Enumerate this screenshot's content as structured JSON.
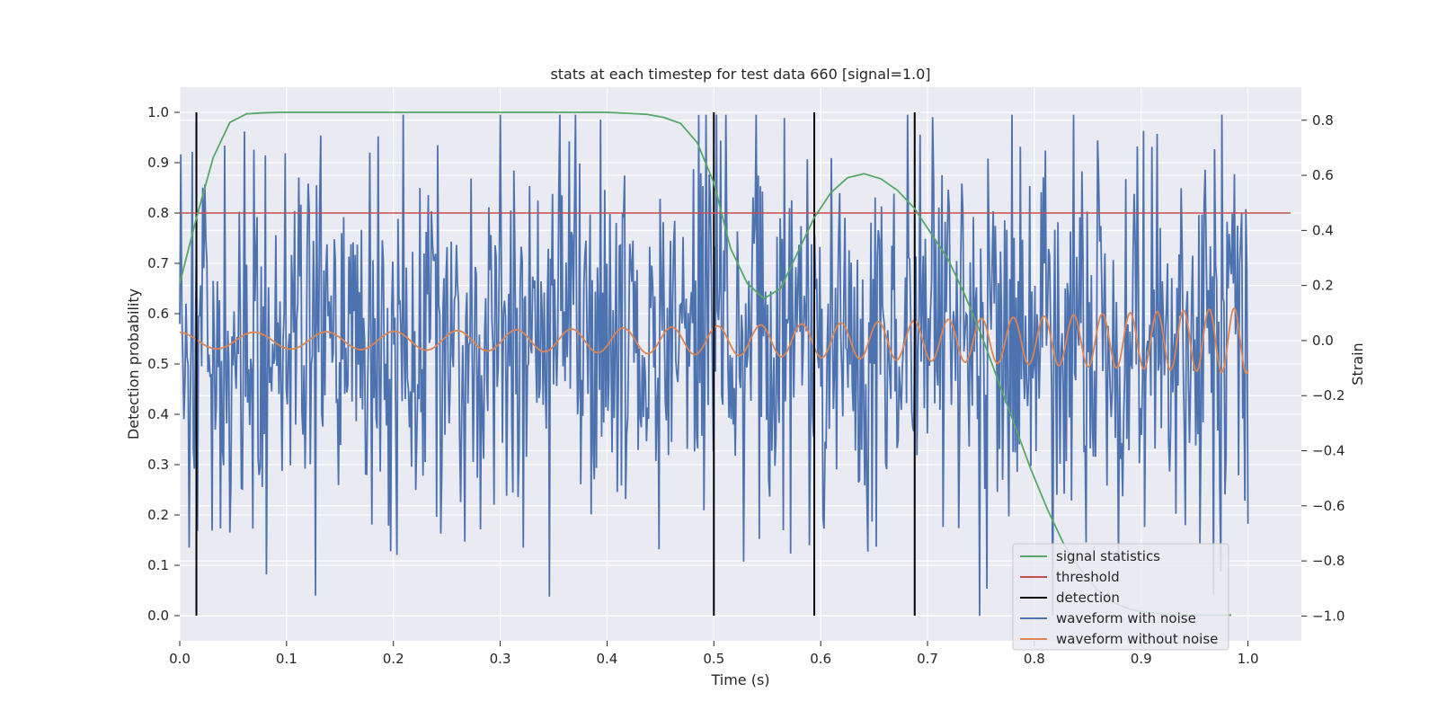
{
  "chart_data": {
    "type": "line",
    "title": "stats at each timestep for test data 660 [signal=1.0]",
    "xlabel": "Time (s)",
    "ylabel": "Detection probability",
    "y2label": "Strain",
    "xlim": [
      0.0,
      1.05
    ],
    "ylim": [
      -0.05,
      1.05
    ],
    "y2lim": [
      -1.09,
      0.92
    ],
    "xticks": [
      "0.0",
      "0.1",
      "0.2",
      "0.3",
      "0.4",
      "0.5",
      "0.6",
      "0.7",
      "0.8",
      "0.9",
      "1.0"
    ],
    "yticks": [
      "0.0",
      "0.1",
      "0.2",
      "0.3",
      "0.4",
      "0.5",
      "0.6",
      "0.7",
      "0.8",
      "0.9",
      "1.0"
    ],
    "y2ticks": [
      "−1.0",
      "−0.8",
      "−0.6",
      "−0.4",
      "−0.2",
      "0.0",
      "0.2",
      "0.4",
      "0.6",
      "0.8"
    ],
    "grid": true,
    "legend_position": "lower-right",
    "colors": {
      "background": "#eaeaf2",
      "grid": "#ffffff",
      "signal_statistics": "#55a868",
      "threshold": "#c44e52",
      "detection": "#000000",
      "waveform_with_noise": "#4c72b0",
      "waveform_without_noise": "#dd8452"
    },
    "legend": [
      "signal statistics",
      "threshold",
      "detection",
      "waveform with noise",
      "waveform without noise"
    ],
    "threshold": 0.8,
    "detections": [
      0.0156,
      0.5,
      0.594,
      0.688
    ],
    "signal_statistics": {
      "x": [
        0.0,
        0.0156,
        0.0313,
        0.0469,
        0.0625,
        0.0781,
        0.0938,
        0.1094,
        0.125,
        0.2,
        0.3,
        0.4,
        0.42,
        0.4375,
        0.4531,
        0.4688,
        0.4844,
        0.5,
        0.5156,
        0.5313,
        0.5469,
        0.5625,
        0.5781,
        0.5938,
        0.6094,
        0.625,
        0.6406,
        0.6563,
        0.6719,
        0.6875,
        0.7031,
        0.7188,
        0.7344,
        0.75,
        0.7656,
        0.7813,
        0.7969,
        0.8125,
        0.8281,
        0.8438,
        0.8594,
        0.875,
        0.8906,
        0.9063,
        0.9219,
        0.9375,
        0.9531,
        0.9688,
        0.9844
      ],
      "y": [
        0.66,
        0.79,
        0.91,
        0.98,
        0.997,
        0.999,
        1.0,
        1.0,
        1.0,
        1.0,
        1.0,
        1.0,
        0.998,
        0.996,
        0.99,
        0.978,
        0.94,
        0.86,
        0.73,
        0.66,
        0.63,
        0.65,
        0.72,
        0.79,
        0.84,
        0.87,
        0.878,
        0.868,
        0.845,
        0.81,
        0.76,
        0.71,
        0.64,
        0.56,
        0.47,
        0.38,
        0.29,
        0.21,
        0.14,
        0.09,
        0.05,
        0.025,
        0.012,
        0.006,
        0.003,
        0.002,
        0.001,
        0.001,
        0.001
      ]
    },
    "waveform_without_noise": {
      "description_free": true,
      "x_start": 0.0,
      "x_end": 1.0,
      "samples": 1024,
      "amplitude_start": 0.03,
      "amplitude_end": 0.12,
      "frequency_start_hz": 14,
      "frequency_end_hz": 44
    },
    "waveform_with_noise": {
      "x_start": 0.0,
      "x_end": 1.0,
      "samples": 1024,
      "noise_std": 0.34,
      "y_range": [
        -1.0,
        0.82
      ]
    }
  }
}
